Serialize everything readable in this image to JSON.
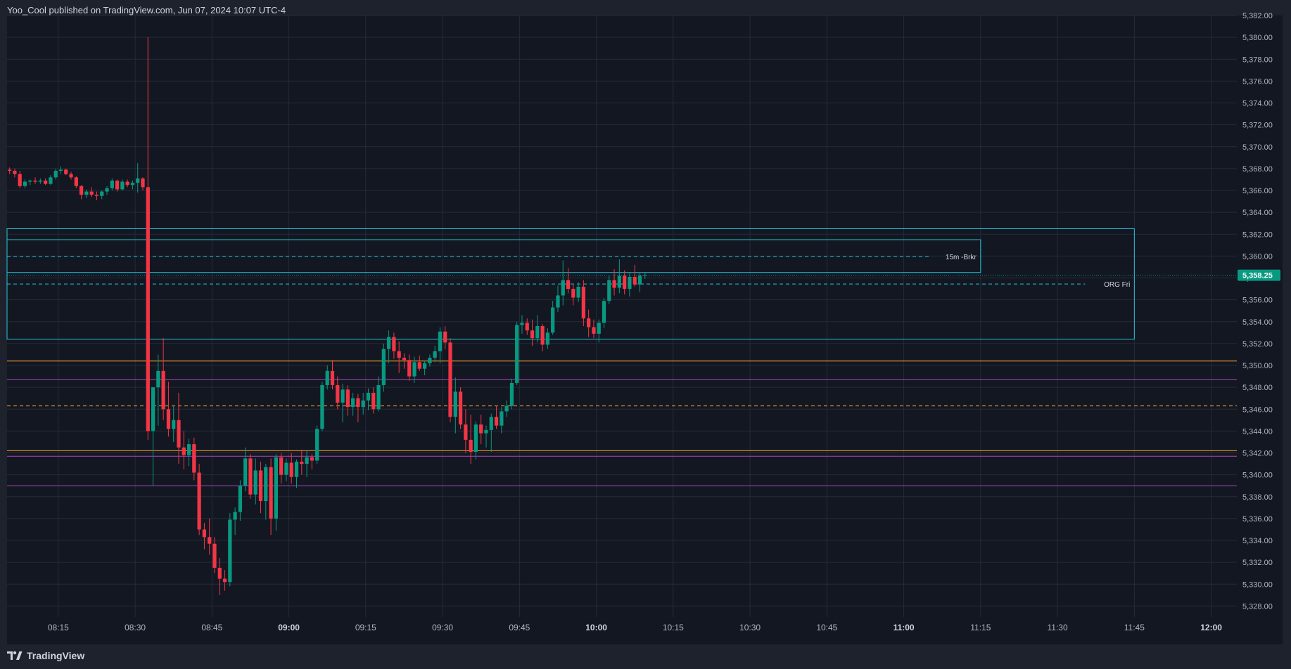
{
  "header": {
    "published_text": "Yoo_Cool published on TradingView.com, Jun 07, 2024 10:07 UTC-4"
  },
  "footer": {
    "brand_label": "TradingView",
    "logo_icon": "tradingview-logo-icon"
  },
  "colors": {
    "background": "#131722",
    "frame": "#1e222d",
    "grid": "#262b38",
    "axis_text": "#b2b5be",
    "up": "#089981",
    "down": "#f23645",
    "box": "#26c6da",
    "level_orange": "#ffa726",
    "level_purple": "#ab47bc",
    "price_badge": "#089981"
  },
  "chart_data": {
    "type": "candlestick",
    "title": "",
    "xlabel": "",
    "ylabel": "",
    "x_range": [
      "08:05",
      "12:05"
    ],
    "ylim": [
      5327.0,
      5382.0
    ],
    "y_ticks": [
      "5,382.00",
      "5,380.00",
      "5,378.00",
      "5,376.00",
      "5,374.00",
      "5,372.00",
      "5,370.00",
      "5,368.00",
      "5,366.00",
      "5,364.00",
      "5,362.00",
      "5,360.00",
      "5,358.00",
      "5,356.00",
      "5,354.00",
      "5,352.00",
      "5,350.00",
      "5,348.00",
      "5,346.00",
      "5,344.00",
      "5,342.00",
      "5,340.00",
      "5,338.00",
      "5,336.00",
      "5,334.00",
      "5,332.00",
      "5,330.00",
      "5,328.00"
    ],
    "x_ticks": [
      {
        "t": "08:15",
        "label": "08:15",
        "bold": false
      },
      {
        "t": "08:30",
        "label": "08:30",
        "bold": false
      },
      {
        "t": "08:45",
        "label": "08:45",
        "bold": false
      },
      {
        "t": "09:00",
        "label": "09:00",
        "bold": true
      },
      {
        "t": "09:15",
        "label": "09:15",
        "bold": false
      },
      {
        "t": "09:30",
        "label": "09:30",
        "bold": false
      },
      {
        "t": "09:45",
        "label": "09:45",
        "bold": false
      },
      {
        "t": "10:00",
        "label": "10:00",
        "bold": true
      },
      {
        "t": "10:15",
        "label": "10:15",
        "bold": false
      },
      {
        "t": "10:30",
        "label": "10:30",
        "bold": false
      },
      {
        "t": "10:45",
        "label": "10:45",
        "bold": false
      },
      {
        "t": "11:00",
        "label": "11:00",
        "bold": true
      },
      {
        "t": "11:15",
        "label": "11:15",
        "bold": false
      },
      {
        "t": "11:30",
        "label": "11:30",
        "bold": false
      },
      {
        "t": "11:45",
        "label": "11:45",
        "bold": false
      },
      {
        "t": "12:00",
        "label": "12:00",
        "bold": true
      }
    ],
    "current_price": {
      "value": 5358.25,
      "label": "5,358.25"
    },
    "candles_start": "08:05",
    "candle_minutes": 1,
    "candles": [
      [
        5367.9,
        5368.1,
        5367.5,
        5367.8
      ],
      [
        5367.8,
        5368.0,
        5367.2,
        5367.5
      ],
      [
        5367.5,
        5367.8,
        5366.2,
        5366.4
      ],
      [
        5366.4,
        5367.0,
        5366.2,
        5366.8
      ],
      [
        5366.8,
        5367.0,
        5366.5,
        5366.9
      ],
      [
        5366.9,
        5367.2,
        5366.6,
        5366.8
      ],
      [
        5366.8,
        5367.1,
        5366.6,
        5366.9
      ],
      [
        5366.9,
        5367.1,
        5366.5,
        5366.6
      ],
      [
        5366.6,
        5367.4,
        5366.5,
        5367.2
      ],
      [
        5367.2,
        5368.0,
        5367.0,
        5367.8
      ],
      [
        5367.8,
        5368.2,
        5367.5,
        5367.9
      ],
      [
        5367.9,
        5368.0,
        5367.4,
        5367.5
      ],
      [
        5367.5,
        5367.7,
        5367.0,
        5367.2
      ],
      [
        5367.2,
        5367.3,
        5366.2,
        5366.4
      ],
      [
        5366.4,
        5366.5,
        5365.2,
        5365.6
      ],
      [
        5365.6,
        5366.1,
        5365.3,
        5365.9
      ],
      [
        5365.9,
        5366.3,
        5365.4,
        5365.6
      ],
      [
        5365.6,
        5365.9,
        5365.1,
        5365.5
      ],
      [
        5365.5,
        5366.0,
        5365.2,
        5365.9
      ],
      [
        5365.9,
        5366.4,
        5365.6,
        5366.2
      ],
      [
        5366.2,
        5367.1,
        5366.0,
        5366.9
      ],
      [
        5366.9,
        5367.0,
        5365.9,
        5366.1
      ],
      [
        5366.1,
        5367.0,
        5366.0,
        5366.8
      ],
      [
        5366.8,
        5367.0,
        5366.3,
        5366.5
      ],
      [
        5366.5,
        5366.9,
        5366.1,
        5366.7
      ],
      [
        5366.7,
        5368.5,
        5365.8,
        5367.1
      ],
      [
        5367.1,
        5367.2,
        5366.0,
        5366.3
      ],
      [
        5366.3,
        5380.0,
        5343.2,
        5344.0
      ],
      [
        5344.0,
        5348.0,
        5339.0,
        5348.0
      ],
      [
        5348.0,
        5351.0,
        5344.5,
        5349.5
      ],
      [
        5349.5,
        5352.5,
        5345.0,
        5346.0
      ],
      [
        5346.0,
        5348.5,
        5343.5,
        5344.2
      ],
      [
        5344.2,
        5346.3,
        5343.0,
        5345.0
      ],
      [
        5345.0,
        5347.5,
        5341.0,
        5342.5
      ],
      [
        5342.5,
        5344.0,
        5340.5,
        5341.8
      ],
      [
        5341.8,
        5343.3,
        5340.8,
        5342.8
      ],
      [
        5342.8,
        5343.4,
        5339.5,
        5340.2
      ],
      [
        5340.2,
        5341.0,
        5334.5,
        5335.0
      ],
      [
        5335.0,
        5335.6,
        5333.2,
        5334.3
      ],
      [
        5334.3,
        5336.0,
        5332.7,
        5333.7
      ],
      [
        5333.7,
        5334.3,
        5331.0,
        5331.5
      ],
      [
        5331.5,
        5332.4,
        5329.0,
        5330.5
      ],
      [
        5330.5,
        5331.3,
        5329.4,
        5330.2
      ],
      [
        5330.2,
        5336.5,
        5329.8,
        5335.9
      ],
      [
        5335.9,
        5337.0,
        5334.5,
        5336.6
      ],
      [
        5336.6,
        5339.5,
        5335.8,
        5339.0
      ],
      [
        5339.0,
        5342.5,
        5338.5,
        5341.5
      ],
      [
        5341.5,
        5341.9,
        5337.8,
        5338.2
      ],
      [
        5338.2,
        5341.5,
        5337.3,
        5340.4
      ],
      [
        5340.4,
        5341.2,
        5336.5,
        5337.6
      ],
      [
        5337.6,
        5341.0,
        5335.9,
        5340.7
      ],
      [
        5340.7,
        5341.5,
        5334.5,
        5336.0
      ],
      [
        5336.0,
        5341.9,
        5334.9,
        5341.6
      ],
      [
        5341.6,
        5342.0,
        5339.2,
        5340.0
      ],
      [
        5340.0,
        5341.5,
        5339.4,
        5341.1
      ],
      [
        5341.1,
        5342.0,
        5339.2,
        5339.8
      ],
      [
        5339.8,
        5341.4,
        5338.8,
        5341.2
      ],
      [
        5341.2,
        5342.3,
        5340.0,
        5341.0
      ],
      [
        5341.0,
        5342.2,
        5339.8,
        5341.6
      ],
      [
        5341.6,
        5341.9,
        5340.5,
        5341.3
      ],
      [
        5341.3,
        5344.5,
        5341.0,
        5344.2
      ],
      [
        5344.2,
        5348.5,
        5344.0,
        5348.2
      ],
      [
        5348.2,
        5350.0,
        5347.8,
        5349.5
      ],
      [
        5349.5,
        5350.5,
        5347.8,
        5348.2
      ],
      [
        5348.2,
        5349.0,
        5346.0,
        5346.6
      ],
      [
        5346.6,
        5348.3,
        5344.8,
        5347.8
      ],
      [
        5347.8,
        5348.2,
        5345.4,
        5346.2
      ],
      [
        5346.2,
        5347.5,
        5345.4,
        5347.0
      ],
      [
        5347.0,
        5347.4,
        5344.8,
        5346.2
      ],
      [
        5346.2,
        5347.5,
        5345.5,
        5346.8
      ],
      [
        5346.8,
        5347.9,
        5345.9,
        5347.5
      ],
      [
        5347.5,
        5348.0,
        5345.6,
        5346.0
      ],
      [
        5346.0,
        5349.0,
        5345.8,
        5348.2
      ],
      [
        5348.2,
        5352.0,
        5347.6,
        5351.5
      ],
      [
        5351.5,
        5353.2,
        5350.2,
        5352.6
      ],
      [
        5352.6,
        5353.0,
        5350.6,
        5351.3
      ],
      [
        5351.3,
        5352.2,
        5349.3,
        5350.7
      ],
      [
        5350.7,
        5351.1,
        5349.7,
        5350.5
      ],
      [
        5350.5,
        5351.0,
        5348.6,
        5349.0
      ],
      [
        5349.0,
        5350.8,
        5348.4,
        5350.3
      ],
      [
        5350.3,
        5350.9,
        5349.5,
        5349.7
      ],
      [
        5349.7,
        5350.4,
        5349.1,
        5350.2
      ],
      [
        5350.2,
        5351.0,
        5349.9,
        5350.7
      ],
      [
        5350.7,
        5351.8,
        5350.3,
        5351.3
      ],
      [
        5351.3,
        5353.5,
        5350.2,
        5353.1
      ],
      [
        5353.1,
        5353.6,
        5351.5,
        5352.1
      ],
      [
        5352.1,
        5352.5,
        5344.8,
        5345.3
      ],
      [
        5345.3,
        5348.9,
        5343.8,
        5347.6
      ],
      [
        5347.6,
        5348.0,
        5344.2,
        5344.6
      ],
      [
        5344.6,
        5346.0,
        5342.0,
        5343.2
      ],
      [
        5343.2,
        5345.5,
        5341.0,
        5342.1
      ],
      [
        5342.1,
        5344.9,
        5341.4,
        5344.6
      ],
      [
        5344.6,
        5345.5,
        5342.8,
        5343.8
      ],
      [
        5343.8,
        5344.5,
        5342.5,
        5344.1
      ],
      [
        5344.1,
        5345.6,
        5342.1,
        5345.3
      ],
      [
        5345.3,
        5346.3,
        5344.2,
        5344.5
      ],
      [
        5344.5,
        5346.2,
        5343.8,
        5345.8
      ],
      [
        5345.8,
        5346.8,
        5345.3,
        5346.3
      ],
      [
        5346.3,
        5348.8,
        5346.0,
        5348.4
      ],
      [
        5348.4,
        5354.0,
        5348.2,
        5353.7
      ],
      [
        5353.7,
        5354.6,
        5352.9,
        5353.9
      ],
      [
        5353.9,
        5354.3,
        5352.8,
        5353.2
      ],
      [
        5353.2,
        5354.2,
        5351.8,
        5352.5
      ],
      [
        5352.5,
        5354.6,
        5352.1,
        5353.6
      ],
      [
        5353.6,
        5353.8,
        5351.3,
        5351.9
      ],
      [
        5351.9,
        5353.4,
        5351.5,
        5353.0
      ],
      [
        5353.0,
        5355.9,
        5352.8,
        5355.3
      ],
      [
        5355.3,
        5357.3,
        5354.9,
        5356.4
      ],
      [
        5356.4,
        5359.6,
        5355.5,
        5357.8
      ],
      [
        5357.8,
        5358.9,
        5356.6,
        5357.0
      ],
      [
        5357.0,
        5357.4,
        5355.5,
        5356.2
      ],
      [
        5356.2,
        5357.6,
        5355.8,
        5357.2
      ],
      [
        5357.2,
        5357.8,
        5353.6,
        5354.3
      ],
      [
        5354.3,
        5355.1,
        5352.6,
        5353.5
      ],
      [
        5353.5,
        5354.2,
        5352.5,
        5352.9
      ],
      [
        5352.9,
        5354.2,
        5352.1,
        5353.9
      ],
      [
        5353.9,
        5356.2,
        5353.4,
        5355.9
      ],
      [
        5355.9,
        5358.2,
        5355.6,
        5357.8
      ],
      [
        5357.8,
        5358.8,
        5356.4,
        5357.1
      ],
      [
        5357.1,
        5359.7,
        5356.6,
        5358.2
      ],
      [
        5358.2,
        5358.7,
        5356.5,
        5357.0
      ],
      [
        5357.0,
        5358.5,
        5356.3,
        5358.1
      ],
      [
        5358.1,
        5359.2,
        5357.2,
        5357.4
      ],
      [
        5357.4,
        5358.5,
        5356.7,
        5358.2
      ],
      [
        5358.2,
        5358.5,
        5357.9,
        5358.25
      ]
    ],
    "boxes": [
      {
        "name": "15m-brkr-box",
        "x0": "08:05",
        "x1": "11:15",
        "y0": 5358.5,
        "y1": 5361.5,
        "midline": 5359.97,
        "label": "15m -Brkr"
      },
      {
        "name": "org-fri-box",
        "x0": "08:05",
        "x1": "11:45",
        "y0": 5352.4,
        "y1": 5362.5,
        "midline": 5357.45,
        "label": "ORG Fri"
      }
    ],
    "levels": [
      {
        "name": "orange-level-upper",
        "value": 5350.4,
        "color": "orange",
        "style": "solid"
      },
      {
        "name": "purple-level-upper",
        "value": 5348.7,
        "color": "purple",
        "style": "solid"
      },
      {
        "name": "orange-level-mid",
        "value": 5346.3,
        "color": "orange",
        "style": "dashed"
      },
      {
        "name": "orange-level-lower",
        "value": 5342.2,
        "color": "orange",
        "style": "solid"
      },
      {
        "name": "purple-level-mid",
        "value": 5341.7,
        "color": "purple",
        "style": "solid"
      },
      {
        "name": "purple-level-lower",
        "value": 5339.0,
        "color": "purple",
        "style": "solid"
      }
    ]
  }
}
